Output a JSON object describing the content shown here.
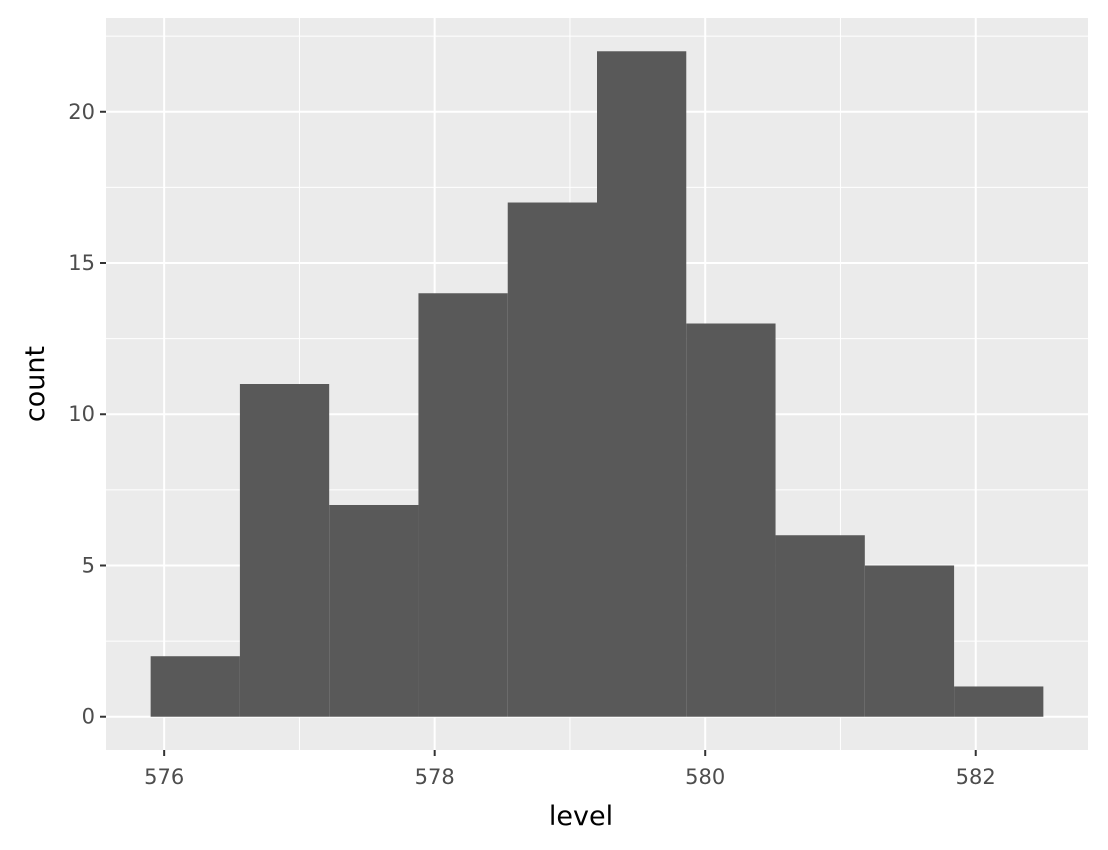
{
  "chart_data": {
    "type": "bar",
    "subtype": "histogram",
    "title": "",
    "xlabel": "level",
    "ylabel": "count",
    "bins": [
      {
        "x0": 575.9,
        "x1": 576.56,
        "count": 2
      },
      {
        "x0": 576.56,
        "x1": 577.22,
        "count": 11
      },
      {
        "x0": 577.22,
        "x1": 577.88,
        "count": 7
      },
      {
        "x0": 577.88,
        "x1": 578.54,
        "count": 14
      },
      {
        "x0": 578.54,
        "x1": 579.2,
        "count": 17
      },
      {
        "x0": 579.2,
        "x1": 579.86,
        "count": 22
      },
      {
        "x0": 579.86,
        "x1": 580.52,
        "count": 13
      },
      {
        "x0": 580.52,
        "x1": 581.18,
        "count": 6
      },
      {
        "x0": 581.18,
        "x1": 581.84,
        "count": 5
      },
      {
        "x0": 581.84,
        "x1": 582.5,
        "count": 1
      }
    ],
    "xlim": [
      575.57,
      582.83
    ],
    "ylim": [
      -1.1,
      23.1
    ],
    "x_ticks": [
      576,
      578,
      580,
      582
    ],
    "y_ticks": [
      0,
      5,
      10,
      15,
      20
    ],
    "x_tick_labels": [
      "576",
      "578",
      "580",
      "582"
    ],
    "y_tick_labels": [
      "0",
      "5",
      "10",
      "15",
      "20"
    ],
    "grid": true,
    "legend": "none",
    "colors": {
      "panel_background": "#ebebeb",
      "grid_major": "#ffffff",
      "bar_fill": "#595959",
      "tick_text": "#4d4d4d",
      "tick_mark": "#333333",
      "axis_title": "#000000"
    }
  }
}
